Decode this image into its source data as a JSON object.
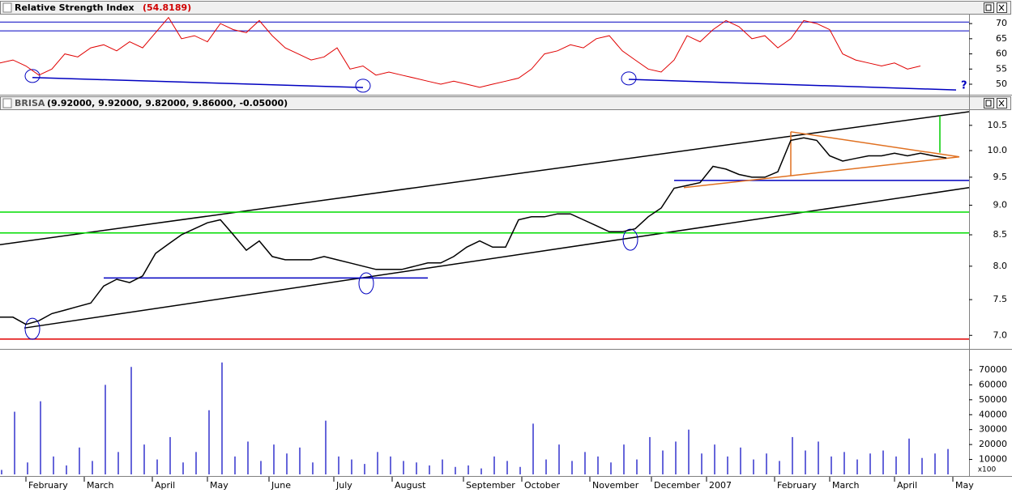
{
  "chart_data": [
    {
      "type": "line",
      "title": "Relative Strength Index",
      "subtitle": "(54.8189)",
      "xlim": [
        0,
        299
      ],
      "ylim": [
        46.8,
        72.7
      ],
      "yticks": [
        50,
        55,
        60,
        65,
        70
      ],
      "levels": [
        70.5,
        67.6
      ],
      "level_color": "#0000c0",
      "x": [
        0,
        4,
        8,
        12,
        16,
        20,
        24,
        28,
        32,
        36,
        40,
        44,
        48,
        52,
        56,
        60,
        64,
        68,
        72,
        76,
        80,
        84,
        88,
        92,
        96,
        100,
        104,
        108,
        112,
        116,
        120,
        124,
        128,
        132,
        136,
        140,
        144,
        148,
        152,
        156,
        160,
        164,
        168,
        172,
        176,
        180,
        184,
        188,
        192,
        196,
        200,
        204,
        208,
        212,
        216,
        220,
        224,
        228,
        232,
        236,
        240,
        244,
        248,
        252,
        256,
        260,
        264,
        268,
        272,
        276,
        280,
        284
      ],
      "series": [
        {
          "name": "RSI",
          "color": "#e00000",
          "values": [
            57,
            58,
            56,
            53,
            55,
            60,
            59,
            62,
            63,
            61,
            64,
            62,
            67,
            72,
            65,
            66,
            64,
            70,
            68,
            67,
            71,
            66,
            62,
            60,
            58,
            59,
            62,
            55,
            56,
            53,
            54,
            53,
            52,
            51,
            50,
            51,
            50,
            49,
            50,
            51,
            52,
            55,
            60,
            61,
            63,
            62,
            65,
            66,
            61,
            58,
            55,
            54,
            58,
            66,
            64,
            68,
            71,
            69,
            65,
            66,
            62,
            65,
            71,
            70,
            68,
            60,
            58,
            57,
            56,
            57,
            55,
            56
          ]
        }
      ],
      "lines": [
        {
          "color": "#0000c0",
          "x": [
            10,
            112
          ],
          "y": [
            52.2,
            48.9
          ]
        },
        {
          "color": "#0000c0",
          "x": [
            194,
            295
          ],
          "y": [
            51.6,
            48.1
          ]
        }
      ],
      "circles": [
        {
          "x": 10,
          "y": 52.7
        },
        {
          "x": 112,
          "y": 49.5
        },
        {
          "x": 194,
          "y": 51.9
        }
      ],
      "annotation": "?"
    },
    {
      "type": "line",
      "title": "BRISA",
      "subtitle": "(9.92000, 9.92000, 9.82000, 9.86000, -0.05000)",
      "log_scale": true,
      "xlim": [
        0,
        299
      ],
      "ylim": [
        6.83,
        10.78
      ],
      "yticks": [
        {
          "value": 7,
          "label": "7.0"
        },
        7.5,
        {
          "value": 8,
          "label": "8.0"
        },
        8.5,
        {
          "value": 9,
          "label": "9.0"
        },
        9.5,
        {
          "value": 10,
          "label": "10.0"
        },
        10.5
      ],
      "x": [
        0,
        4,
        8,
        12,
        16,
        20,
        24,
        28,
        32,
        36,
        40,
        44,
        48,
        52,
        56,
        60,
        64,
        68,
        72,
        76,
        80,
        84,
        88,
        92,
        96,
        100,
        104,
        108,
        112,
        116,
        120,
        124,
        128,
        132,
        136,
        140,
        144,
        148,
        152,
        156,
        160,
        164,
        168,
        172,
        176,
        180,
        184,
        188,
        192,
        196,
        200,
        204,
        208,
        212,
        216,
        220,
        224,
        228,
        232,
        236,
        240,
        244,
        248,
        252,
        256,
        260,
        264,
        268,
        272,
        276,
        280,
        284,
        288,
        292
      ],
      "series": [
        {
          "name": "BRISA",
          "color": "#000000",
          "values": [
            7.25,
            7.25,
            7.15,
            7.2,
            7.3,
            7.35,
            7.4,
            7.45,
            7.7,
            7.8,
            7.75,
            7.85,
            8.2,
            8.35,
            8.5,
            8.6,
            8.7,
            8.75,
            8.5,
            8.25,
            8.4,
            8.15,
            8.1,
            8.1,
            8.1,
            8.15,
            8.1,
            8.05,
            8.0,
            7.95,
            7.95,
            7.95,
            8.0,
            8.05,
            8.05,
            8.15,
            8.3,
            8.4,
            8.3,
            8.3,
            8.75,
            8.8,
            8.8,
            8.85,
            8.85,
            8.75,
            8.65,
            8.55,
            8.55,
            8.6,
            8.8,
            8.95,
            9.3,
            9.35,
            9.4,
            9.7,
            9.65,
            9.55,
            9.5,
            9.5,
            9.6,
            10.2,
            10.25,
            10.2,
            9.9,
            9.8,
            9.85,
            9.9,
            9.9,
            9.95,
            9.9,
            9.95,
            9.9,
            9.86
          ]
        }
      ],
      "lines": [
        {
          "color": "#000000",
          "x": [
            0,
            299
          ],
          "y": [
            8.34,
            10.78
          ]
        },
        {
          "color": "#000000",
          "x": [
            7.5,
            299
          ],
          "y": [
            7.1,
            9.31
          ]
        },
        {
          "color": "#00dd00",
          "x": [
            0,
            299
          ],
          "y": [
            8.88,
            8.88
          ]
        },
        {
          "color": "#00dd00",
          "x": [
            0,
            299
          ],
          "y": [
            8.53,
            8.53
          ]
        },
        {
          "color": "#e00000",
          "x": [
            0,
            299
          ],
          "y": [
            6.95,
            6.95
          ]
        },
        {
          "color": "#0000c0",
          "x": [
            32,
            132
          ],
          "y": [
            7.82,
            7.82
          ]
        },
        {
          "color": "#0000c0",
          "x": [
            208,
            299
          ],
          "y": [
            9.44,
            9.44
          ]
        },
        {
          "color": "#e07020",
          "x": [
            244,
            296
          ],
          "y": [
            10.37,
            9.88
          ]
        },
        {
          "color": "#e07020",
          "x": [
            211,
            296
          ],
          "y": [
            9.31,
            9.88
          ]
        },
        {
          "color": "#e07020",
          "x": [
            244,
            244
          ],
          "y": [
            10.37,
            9.53
          ]
        },
        {
          "color": "#00cc00",
          "x": [
            290,
            290
          ],
          "y": [
            10.7,
            9.96
          ]
        }
      ],
      "circles": [
        {
          "x": 10,
          "y": 7.09
        },
        {
          "x": 113,
          "y": 7.74
        },
        {
          "x": 194.5,
          "y": 8.42
        }
      ]
    },
    {
      "type": "bar",
      "ylabel": "x100",
      "xlim": [
        0,
        299
      ],
      "ylim": [
        0,
        83000
      ],
      "yticks": [
        10000,
        20000,
        30000,
        40000,
        50000,
        60000,
        70000
      ],
      "xticks": [
        {
          "value": 8,
          "label": "February"
        },
        {
          "value": 26,
          "label": "March"
        },
        {
          "value": 47,
          "label": "April"
        },
        {
          "value": 64,
          "label": "May"
        },
        {
          "value": 83,
          "label": "June"
        },
        {
          "value": 103,
          "label": "July"
        },
        {
          "value": 121,
          "label": "August"
        },
        {
          "value": 143,
          "label": "September"
        },
        {
          "value": 161,
          "label": "October"
        },
        {
          "value": 182,
          "label": "November"
        },
        {
          "value": 201,
          "label": "December"
        },
        {
          "value": 218,
          "label": "2007"
        },
        {
          "value": 239,
          "label": "February"
        },
        {
          "value": 256,
          "label": "March"
        },
        {
          "value": 276,
          "label": "April"
        },
        {
          "value": 294,
          "label": "May"
        }
      ],
      "x": [
        0,
        4,
        8,
        12,
        16,
        20,
        24,
        28,
        32,
        36,
        40,
        44,
        48,
        52,
        56,
        60,
        64,
        68,
        72,
        76,
        80,
        84,
        88,
        92,
        96,
        100,
        104,
        108,
        112,
        116,
        120,
        124,
        128,
        132,
        136,
        140,
        144,
        148,
        152,
        156,
        160,
        164,
        168,
        172,
        176,
        180,
        184,
        188,
        192,
        196,
        200,
        204,
        208,
        212,
        216,
        220,
        224,
        228,
        232,
        236,
        240,
        244,
        248,
        252,
        256,
        260,
        264,
        268,
        272,
        276,
        280,
        284,
        288,
        292
      ],
      "series": [
        {
          "name": "Volume",
          "color": "#0000c0",
          "values": [
            3000,
            42000,
            8000,
            49000,
            12000,
            6000,
            18000,
            9000,
            60000,
            15000,
            72000,
            20000,
            10000,
            25000,
            8000,
            15000,
            43000,
            75000,
            12000,
            22000,
            9000,
            20000,
            14000,
            18000,
            8000,
            36000,
            12000,
            10000,
            7000,
            15000,
            12000,
            9000,
            8000,
            6000,
            10000,
            5000,
            6000,
            4000,
            12000,
            9000,
            5000,
            34000,
            10000,
            20000,
            9000,
            15000,
            12000,
            8000,
            20000,
            10000,
            25000,
            16000,
            22000,
            30000,
            14000,
            20000,
            12000,
            18000,
            10000,
            14000,
            9000,
            25000,
            16000,
            22000,
            12000,
            15000,
            10000,
            14000,
            16000,
            12000,
            24000,
            11000,
            14000,
            17000
          ]
        }
      ]
    }
  ]
}
